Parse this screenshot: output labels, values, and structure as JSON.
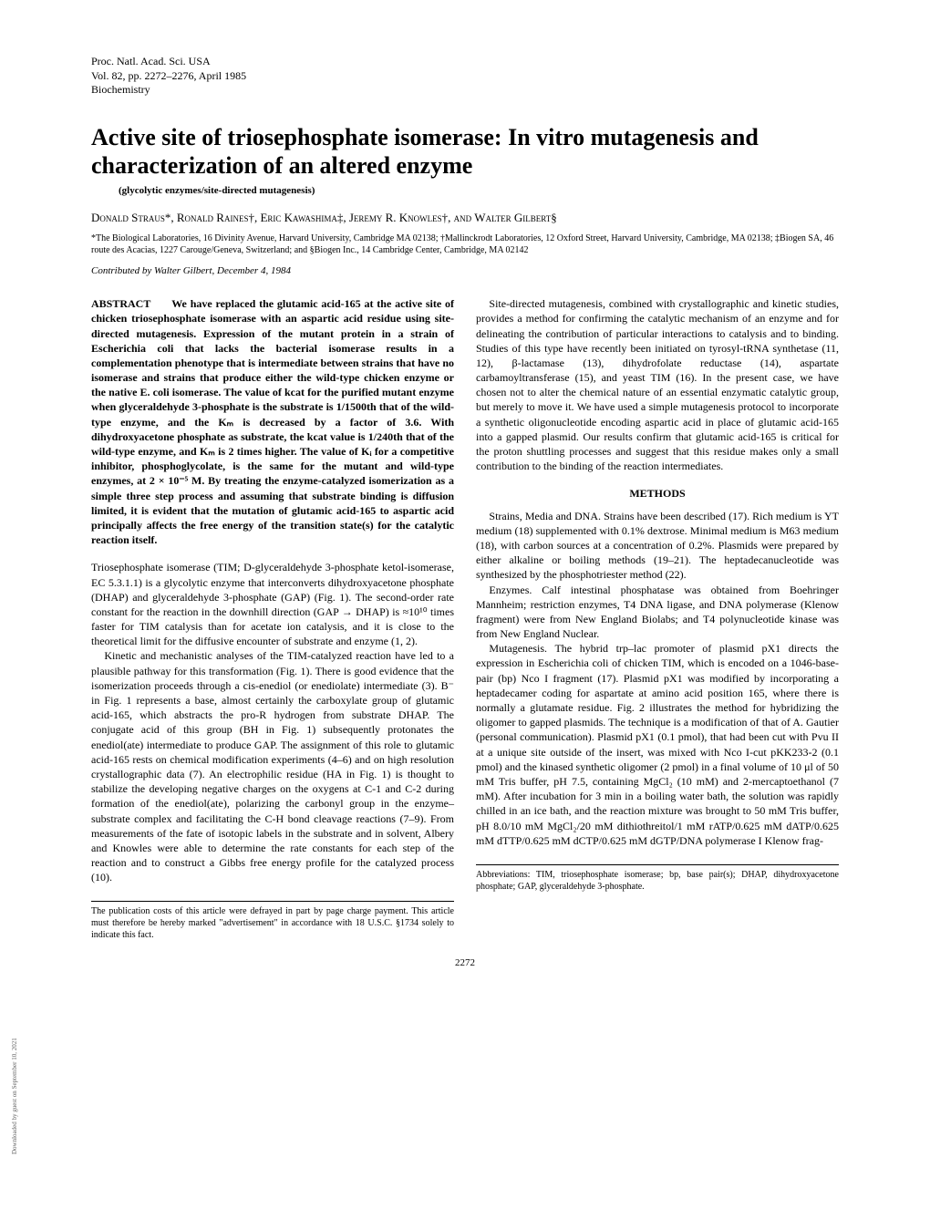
{
  "journal": {
    "line1": "Proc. Natl. Acad. Sci. USA",
    "line2": "Vol. 82, pp. 2272–2276, April 1985",
    "line3": "Biochemistry"
  },
  "title": "Active site of triosephosphate isomerase: In vitro mutagenesis and characterization of an altered enzyme",
  "subtitle": "(glycolytic enzymes/site-directed mutagenesis)",
  "authors": "Donald Straus*, Ronald Raines†, Eric Kawashima‡, Jeremy R. Knowles†, and Walter Gilbert§",
  "affiliations": "*The Biological Laboratories, 16 Divinity Avenue, Harvard University, Cambridge MA 02138; †Mallinckrodt Laboratories, 12 Oxford Street, Harvard University, Cambridge, MA 02138; ‡Biogen SA, 46 route des Acacias, 1227 Carouge/Geneva, Switzerland; and §Biogen Inc., 14 Cambridge Center, Cambridge, MA 02142",
  "contributed": "Contributed by Walter Gilbert, December 4, 1984",
  "abstract_label": "ABSTRACT",
  "abstract_text": "We have replaced the glutamic acid-165 at the active site of chicken triosephosphate isomerase with an aspartic acid residue using site-directed mutagenesis. Expression of the mutant protein in a strain of Escherichia coli that lacks the bacterial isomerase results in a complementation phenotype that is intermediate between strains that have no isomerase and strains that produce either the wild-type chicken enzyme or the native E. coli isomerase. The value of kcat for the purified mutant enzyme when glyceraldehyde 3-phosphate is the substrate is 1/1500th that of the wild-type enzyme, and the Kₘ is decreased by a factor of 3.6. With dihydroxyacetone phosphate as substrate, the kcat value is 1/240th that of the wild-type enzyme, and Kₘ is 2 times higher. The value of Kᵢ for a competitive inhibitor, phosphoglycolate, is the same for the mutant and wild-type enzymes, at 2 × 10⁻⁵ M. By treating the enzyme-catalyzed isomerization as a simple three step process and assuming that substrate binding is diffusion limited, it is evident that the mutation of glutamic acid-165 to aspartic acid principally affects the free energy of the transition state(s) for the catalytic reaction itself.",
  "left_paras": [
    "Triosephosphate isomerase (TIM; D-glyceraldehyde 3-phosphate ketol-isomerase, EC 5.3.1.1) is a glycolytic enzyme that interconverts dihydroxyacetone phosphate (DHAP) and glyceraldehyde 3-phosphate (GAP) (Fig. 1). The second-order rate constant for the reaction in the downhill direction (GAP → DHAP) is ≈10¹⁰ times faster for TIM catalysis than for acetate ion catalysis, and it is close to the theoretical limit for the diffusive encounter of substrate and enzyme (1, 2).",
    "Kinetic and mechanistic analyses of the TIM-catalyzed reaction have led to a plausible pathway for this transformation (Fig. 1). There is good evidence that the isomerization proceeds through a cis-enediol (or enediolate) intermediate (3). B⁻ in Fig. 1 represents a base, almost certainly the carboxylate group of glutamic acid-165, which abstracts the pro-R hydrogen from substrate DHAP. The conjugate acid of this group (BH in Fig. 1) subsequently protonates the enediol(ate) intermediate to produce GAP. The assignment of this role to glutamic acid-165 rests on chemical modification experiments (4–6) and on high resolution crystallographic data (7). An electrophilic residue (HA in Fig. 1) is thought to stabilize the developing negative charges on the oxygens at C-1 and C-2 during formation of the enediol(ate), polarizing the carbonyl group in the enzyme–substrate complex and facilitating the C-H bond cleavage reactions (7–9). From measurements of the fate of isotopic labels in the substrate and in solvent, Albery and Knowles were able to determine the rate constants for each step of the reaction and to construct a Gibbs free energy profile for the catalyzed process (10)."
  ],
  "right_intro": "Site-directed mutagenesis, combined with crystallographic and kinetic studies, provides a method for confirming the catalytic mechanism of an enzyme and for delineating the contribution of particular interactions to catalysis and to binding. Studies of this type have recently been initiated on tyrosyl-tRNA synthetase (11, 12), β-lactamase (13), dihydrofolate reductase (14), aspartate carbamoyltransferase (15), and yeast TIM (16). In the present case, we have chosen not to alter the chemical nature of an essential enzymatic catalytic group, but merely to move it. We have used a simple mutagenesis protocol to incorporate a synthetic oligonucleotide encoding aspartic acid in place of glutamic acid-165 into a gapped plasmid. Our results confirm that glutamic acid-165 is critical for the proton shuttling processes and suggest that this residue makes only a small contribution to the binding of the reaction intermediates.",
  "methods_head": "METHODS",
  "methods_paras": [
    "Strains, Media and DNA. Strains have been described (17). Rich medium is YT medium (18) supplemented with 0.1% dextrose. Minimal medium is M63 medium (18), with carbon sources at a concentration of 0.2%. Plasmids were prepared by either alkaline or boiling methods (19–21). The heptadecanucleotide was synthesized by the phosphotriester method (22).",
    "Enzymes. Calf intestinal phosphatase was obtained from Boehringer Mannheim; restriction enzymes, T4 DNA ligase, and DNA polymerase (Klenow fragment) were from New England Biolabs; and T4 polynucleotide kinase was from New England Nuclear.",
    "Mutagenesis. The hybrid trp–lac promoter of plasmid pX1 directs the expression in Escherichia coli of chicken TIM, which is encoded on a 1046-base-pair (bp) Nco I fragment (17). Plasmid pX1 was modified by incorporating a heptadecamer coding for aspartate at amino acid position 165, where there is normally a glutamate residue. Fig. 2 illustrates the method for hybridizing the oligomer to gapped plasmids. The technique is a modification of that of A. Gautier (personal communication). Plasmid pX1 (0.1 pmol), that had been cut with Pvu II at a unique site outside of the insert, was mixed with Nco I-cut pKK233-2 (0.1 pmol) and the kinased synthetic oligomer (2 pmol) in a final volume of 10 μl of 50 mM Tris buffer, pH 7.5, containing MgCl₂ (10 mM) and 2-mercaptoethanol (7 mM). After incubation for 3 min in a boiling water bath, the solution was rapidly chilled in an ice bath, and the reaction mixture was brought to 50 mM Tris buffer, pH 8.0/10 mM MgCl₂/20 mM dithiothreitol/1 mM rATP/0.625 mM dATP/0.625 mM dTTP/0.625 mM dCTP/0.625 mM dGTP/DNA polymerase I Klenow frag-"
  ],
  "footnote_left": "The publication costs of this article were defrayed in part by page charge payment. This article must therefore be hereby marked \"advertisement\" in accordance with 18 U.S.C. §1734 solely to indicate this fact.",
  "footnote_right": "Abbreviations: TIM, triosephosphate isomerase; bp, base pair(s); DHAP, dihydroxyacetone phosphate; GAP, glyceraldehyde 3-phosphate.",
  "page_number": "2272",
  "side_download": "Downloaded by guest on September 10, 2021"
}
